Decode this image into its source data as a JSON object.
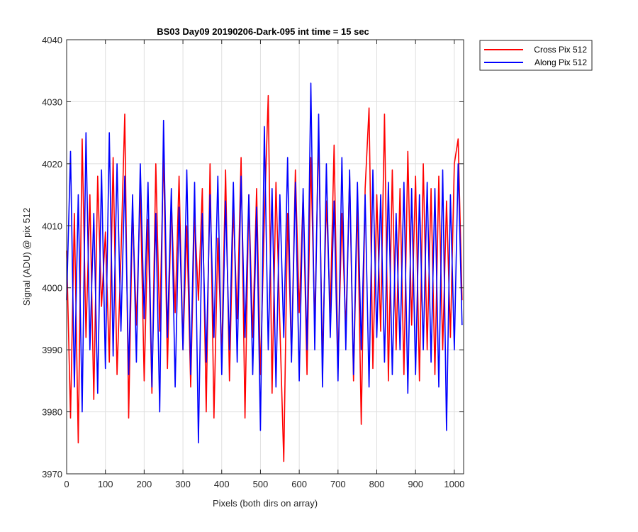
{
  "chart_data": {
    "type": "line",
    "title": "BS03 Day09 20190206-Dark-095 int time = 15 sec",
    "xlabel": "Pixels (both dirs on array)",
    "ylabel": "Signal (ADU) @ pix 512",
    "xlim": [
      0,
      1024
    ],
    "ylim": [
      3970,
      4040
    ],
    "xticks": [
      "0",
      "100",
      "200",
      "300",
      "400",
      "500",
      "600",
      "700",
      "800",
      "900",
      "1000"
    ],
    "yticks": [
      "3970",
      "3980",
      "3990",
      "4000",
      "4010",
      "4020",
      "4030",
      "4040"
    ],
    "grid": true,
    "legend_position": "outside top-right",
    "series": [
      {
        "name": "Cross Pix 512",
        "color": "#ff0000",
        "x": [
          0,
          10,
          20,
          30,
          40,
          50,
          60,
          70,
          80,
          90,
          100,
          110,
          120,
          130,
          140,
          150,
          160,
          170,
          180,
          190,
          200,
          210,
          220,
          230,
          240,
          250,
          260,
          270,
          280,
          290,
          300,
          310,
          320,
          330,
          340,
          350,
          360,
          370,
          380,
          390,
          400,
          410,
          420,
          430,
          440,
          450,
          460,
          470,
          480,
          490,
          500,
          510,
          520,
          530,
          540,
          550,
          560,
          570,
          580,
          590,
          600,
          610,
          620,
          630,
          640,
          650,
          660,
          670,
          680,
          690,
          700,
          710,
          720,
          730,
          740,
          750,
          760,
          770,
          780,
          790,
          800,
          810,
          820,
          830,
          840,
          850,
          860,
          870,
          880,
          890,
          900,
          910,
          920,
          930,
          940,
          950,
          960,
          970,
          980,
          990,
          1000,
          1010,
          1020
        ],
        "values": [
          4006,
          3979,
          4012,
          3975,
          4024,
          3992,
          4015,
          3982,
          4018,
          3997,
          4009,
          3988,
          4021,
          3986,
          4005,
          4028,
          3979,
          4013,
          3994,
          4016,
          3985,
          4011,
          3983,
          4020,
          3993,
          4022,
          3987,
          4014,
          3996,
          4018,
          3990,
          4010,
          3984,
          4012,
          3998,
          4016,
          3980,
          4020,
          3979,
          4008,
          3989,
          4019,
          3985,
          4013,
          3995,
          4021,
          3979,
          4015,
          3992,
          4016,
          3986,
          4011,
          4031,
          3983,
          4017,
          3994,
          3972,
          4012,
          3989,
          4019,
          3996,
          4015,
          3986,
          4021,
          3994,
          4025,
          3988,
          4014,
          3996,
          4023,
          3987,
          4012,
          3993,
          4018,
          3985,
          4014,
          3978,
          4016,
          4029,
          3987,
          4015,
          3993,
          4028,
          3985,
          4019,
          3990,
          4016,
          3986,
          4022,
          3994,
          4018,
          3985,
          4020,
          3990,
          4016,
          3986,
          4018,
          3990,
          4014,
          3992,
          4020,
          4024,
          3998
        ]
      },
      {
        "name": "Along Pix 512",
        "color": "#0000ff",
        "x": [
          0,
          10,
          20,
          30,
          40,
          50,
          60,
          70,
          80,
          90,
          100,
          110,
          120,
          130,
          140,
          150,
          160,
          170,
          180,
          190,
          200,
          210,
          220,
          230,
          240,
          250,
          260,
          270,
          280,
          290,
          300,
          310,
          320,
          330,
          340,
          350,
          360,
          370,
          380,
          390,
          400,
          410,
          420,
          430,
          440,
          450,
          460,
          470,
          480,
          490,
          500,
          510,
          520,
          530,
          540,
          550,
          560,
          570,
          580,
          590,
          600,
          610,
          620,
          630,
          640,
          650,
          660,
          670,
          680,
          690,
          700,
          710,
          720,
          730,
          740,
          750,
          760,
          770,
          780,
          790,
          800,
          810,
          820,
          830,
          840,
          850,
          860,
          870,
          880,
          890,
          900,
          910,
          920,
          930,
          940,
          950,
          960,
          970,
          980,
          990,
          1000,
          1010,
          1020
        ],
        "values": [
          3998,
          4022,
          3984,
          4015,
          3980,
          4025,
          3990,
          4012,
          3983,
          4019,
          3987,
          4025,
          3989,
          4020,
          3993,
          4018,
          3986,
          4015,
          3988,
          4020,
          3995,
          4017,
          3984,
          4012,
          3980,
          4027,
          3992,
          4016,
          3984,
          4013,
          3990,
          4019,
          3986,
          4017,
          3975,
          4012,
          3988,
          4015,
          3992,
          4018,
          3986,
          4014,
          3990,
          4017,
          3988,
          4018,
          3992,
          4015,
          3986,
          4013,
          3977,
          4026,
          3990,
          4016,
          3984,
          4015,
          3992,
          4021,
          3988,
          4017,
          3985,
          4016,
          3990,
          4033,
          3990,
          4028,
          3984,
          4020,
          3992,
          4014,
          3985,
          4021,
          3990,
          4019,
          3986,
          4017,
          3990,
          4015,
          3984,
          4019,
          3992,
          4015,
          3988,
          4017,
          3986,
          4012,
          3990,
          4017,
          3983,
          4016,
          3986,
          4015,
          3990,
          4017,
          3988,
          4016,
          3984,
          4019,
          3977,
          4015,
          3990,
          4020,
          3994
        ]
      }
    ]
  }
}
